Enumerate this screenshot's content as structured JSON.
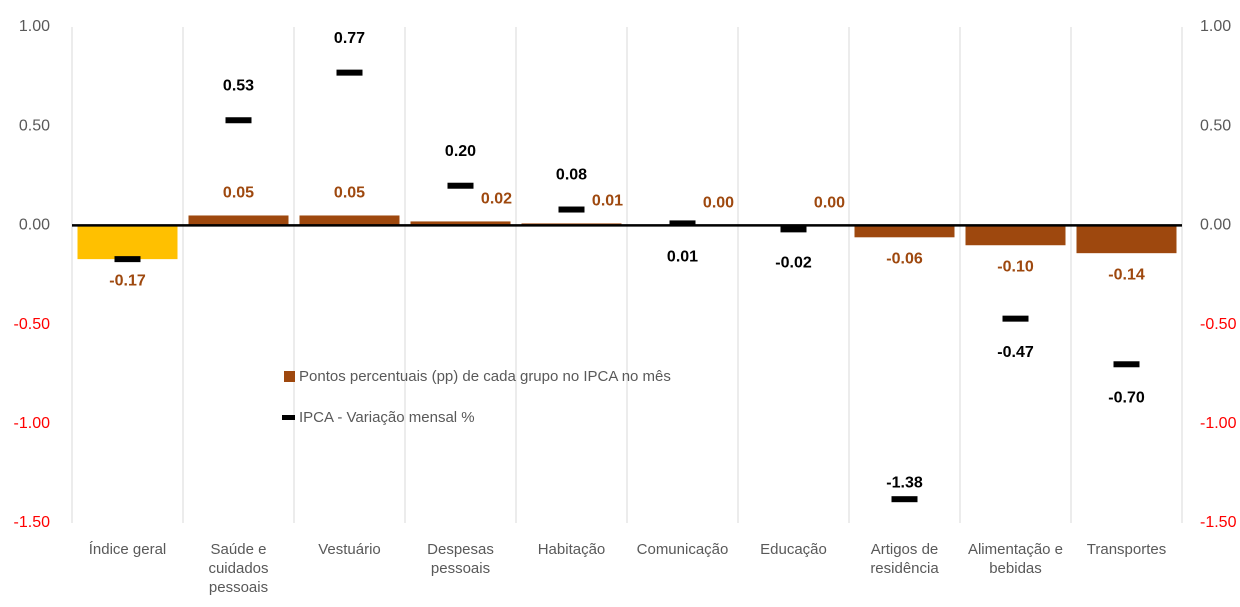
{
  "chart_data": {
    "type": "bar",
    "categories": [
      "Índice geral",
      "Saúde e cuidados pessoais",
      "Vestuário",
      "Despesas pessoais",
      "Habitação",
      "Comunicação",
      "Educação",
      "Artigos de residência",
      "Alimentação e bebidas",
      "Transportes"
    ],
    "series": [
      {
        "name": "Pontos percentuais (pp) de cada grupo no IPCA no mês",
        "type": "bar",
        "color": "#9E480E",
        "colors": [
          "#FFC000",
          "#9E480E",
          "#9E480E",
          "#9E480E",
          "#9E480E",
          "#9E480E",
          "#9E480E",
          "#9E480E",
          "#9E480E",
          "#9E480E"
        ],
        "values": [
          -0.17,
          0.05,
          0.05,
          0.02,
          0.01,
          0.0,
          0.0,
          -0.06,
          -0.1,
          -0.14
        ],
        "value_labels": [
          "-0.17",
          "0.05",
          "0.05",
          "0.02",
          "0.01",
          "0.00",
          "0.00",
          "-0.06",
          "-0.10",
          "-0.14"
        ]
      },
      {
        "name": "IPCA - Variação mensal %",
        "type": "marker",
        "color": "#000000",
        "values": [
          -0.17,
          0.53,
          0.77,
          0.2,
          0.08,
          0.01,
          -0.02,
          -1.38,
          -0.47,
          -0.7
        ],
        "value_labels": [
          null,
          "0.53",
          "0.77",
          "0.20",
          "0.08",
          "0.01",
          "-0.02",
          "-1.38",
          "-0.47",
          "-0.70"
        ]
      }
    ],
    "ylim": [
      -1.5,
      1.0
    ],
    "yticks": [
      {
        "value": 1.0,
        "label": "1.00"
      },
      {
        "value": 0.5,
        "label": "0.50"
      },
      {
        "value": 0,
        "label": "0.00"
      },
      {
        "value": -0.5,
        "label": "-0.50"
      },
      {
        "value": -1.0,
        "label": "-1.00"
      },
      {
        "value": -1.5,
        "label": "-1.50"
      }
    ],
    "y2lim": [
      -1.5,
      1.0
    ],
    "y2ticks": [
      {
        "value": 1.0,
        "label": "1.00"
      },
      {
        "value": 0.5,
        "label": "0.50"
      },
      {
        "value": 0,
        "label": "0.00"
      },
      {
        "value": -0.5,
        "label": "-0.50"
      },
      {
        "value": -1.0,
        "label": "-1.00"
      },
      {
        "value": -1.5,
        "label": "-1.50"
      }
    ],
    "tick_color": "#595959",
    "negative_tick_color": "#FF0000",
    "grid": true
  }
}
